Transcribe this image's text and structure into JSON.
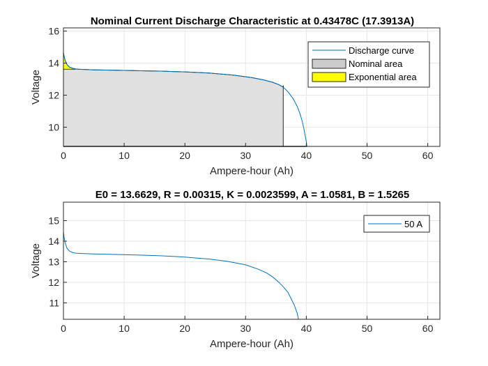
{
  "chart_data": [
    {
      "type": "area",
      "title": "Nominal Current Discharge Characteristic at 0.43478C (17.3913A)",
      "xlabel": "Ampere-hour (Ah)",
      "ylabel": "Voltage",
      "xlim": [
        0,
        62
      ],
      "ylim": [
        8.8,
        16.2
      ],
      "xticks": [
        0,
        10,
        20,
        30,
        40,
        50,
        60
      ],
      "yticks": [
        10,
        12,
        14,
        16
      ],
      "grid": true,
      "legend_position": "top-right",
      "legend": [
        "Discharge curve",
        "Nominal area",
        "Exponential area"
      ],
      "colors": {
        "curve": "#0072bd",
        "nominal": "#e0e0e0",
        "nominal_legend": "#cccccc",
        "exponential": "#ffff00"
      },
      "series": [
        {
          "name": "Discharge curve",
          "x": [
            0,
            0.1,
            0.3,
            0.6,
            1,
            1.5,
            2,
            2.5,
            3,
            5,
            8,
            12,
            16,
            20,
            24,
            28,
            31,
            33,
            34.5,
            35.5,
            36.2,
            37,
            37.8,
            38.5,
            39,
            39.3,
            39.6,
            39.8,
            40,
            40.1
          ],
          "y": [
            14.65,
            14.45,
            14.15,
            13.9,
            13.75,
            13.68,
            13.64,
            13.62,
            13.61,
            13.58,
            13.56,
            13.53,
            13.5,
            13.45,
            13.38,
            13.25,
            13.1,
            12.95,
            12.8,
            12.65,
            12.5,
            12.2,
            11.8,
            11.3,
            10.8,
            10.4,
            9.9,
            9.5,
            9.1,
            8.8
          ]
        }
      ],
      "nominal_area": {
        "x_end": 36.2,
        "y_top": 12.6
      },
      "exponential_area": {
        "x": [
          0,
          0.1,
          0.3,
          0.6,
          1,
          1.5,
          2,
          2.5
        ],
        "y": [
          14.65,
          14.45,
          14.15,
          13.9,
          13.75,
          13.68,
          13.64,
          13.62
        ],
        "baseline": 13.62
      }
    },
    {
      "type": "line",
      "title": "E0 = 13.6629, R = 0.00315, K = 0.0023599, A = 1.0581, B = 1.5265",
      "xlabel": "Ampere-hour (Ah)",
      "ylabel": "Voltage",
      "xlim": [
        0,
        62
      ],
      "ylim": [
        10.2,
        15.9
      ],
      "xticks": [
        0,
        10,
        20,
        30,
        40,
        50,
        60
      ],
      "yticks": [
        11,
        12,
        13,
        14,
        15
      ],
      "grid": true,
      "legend_position": "top-right",
      "legend": [
        "50 A"
      ],
      "colors": {
        "curve": "#0072bd"
      },
      "series": [
        {
          "name": "50 A",
          "x": [
            0,
            0.1,
            0.3,
            0.6,
            1,
            1.5,
            2,
            3,
            5,
            8,
            12,
            16,
            20,
            24,
            27,
            30,
            32,
            33.5,
            34.5,
            35.5,
            36.3,
            37,
            37.5,
            38,
            38.5,
            38.7
          ],
          "y": [
            14.45,
            14.2,
            13.9,
            13.65,
            13.52,
            13.45,
            13.42,
            13.4,
            13.38,
            13.36,
            13.33,
            13.29,
            13.23,
            13.13,
            13.02,
            12.85,
            12.65,
            12.45,
            12.25,
            12.0,
            11.75,
            11.5,
            11.2,
            10.9,
            10.5,
            10.2
          ]
        }
      ]
    }
  ]
}
